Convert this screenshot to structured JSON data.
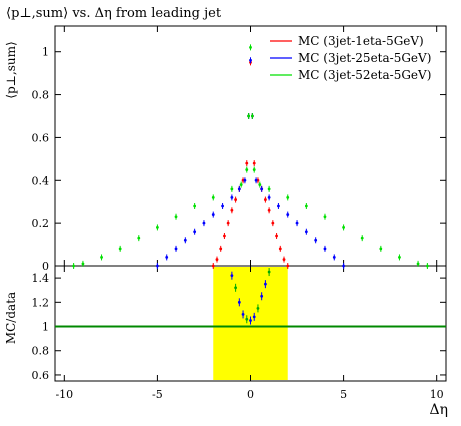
{
  "chart_data": {
    "type": "scatter",
    "title": "⟨p⊥,sum⟩ vs. Δη from leading jet",
    "xlabel": "Δη",
    "x_ticks": [
      "-10",
      "-5",
      "0",
      "5",
      "10"
    ],
    "xlim": [
      -10.5,
      10.5
    ],
    "legend_position": "top-right",
    "main_panel": {
      "ylabel": "⟨p⊥,sum⟩",
      "ylim": [
        0,
        1.12
      ],
      "y_ticks": [
        "0",
        "0.2",
        "0.4",
        "0.6",
        "0.8",
        "1"
      ],
      "series": [
        {
          "name": "MC (3jet-1eta-5GeV)",
          "color": "#ff0000",
          "points": [
            [
              -2.0,
              0.0
            ],
            [
              -1.8,
              0.03
            ],
            [
              -1.6,
              0.08
            ],
            [
              -1.4,
              0.14
            ],
            [
              -1.2,
              0.2
            ],
            [
              -1.0,
              0.26
            ],
            [
              -0.8,
              0.31
            ],
            [
              -0.6,
              0.36
            ],
            [
              -0.4,
              0.4
            ],
            [
              -0.2,
              0.48
            ],
            [
              -0.1,
              0.7
            ],
            [
              0.0,
              0.95
            ],
            [
              0.1,
              0.7
            ],
            [
              0.2,
              0.48
            ],
            [
              0.4,
              0.4
            ],
            [
              0.6,
              0.36
            ],
            [
              0.8,
              0.31
            ],
            [
              1.0,
              0.26
            ],
            [
              1.2,
              0.2
            ],
            [
              1.4,
              0.14
            ],
            [
              1.6,
              0.08
            ],
            [
              1.8,
              0.03
            ],
            [
              2.0,
              0.0
            ]
          ]
        },
        {
          "name": "MC (3jet-25eta-5GeV)",
          "color": "#0000ff",
          "points": [
            [
              -5.0,
              0.0
            ],
            [
              -4.5,
              0.04
            ],
            [
              -4.0,
              0.08
            ],
            [
              -3.5,
              0.12
            ],
            [
              -3.0,
              0.16
            ],
            [
              -2.5,
              0.2
            ],
            [
              -2.0,
              0.24
            ],
            [
              -1.5,
              0.28
            ],
            [
              -1.0,
              0.32
            ],
            [
              -0.6,
              0.36
            ],
            [
              -0.3,
              0.4
            ],
            [
              -0.1,
              0.7
            ],
            [
              0.0,
              0.96
            ],
            [
              0.1,
              0.7
            ],
            [
              0.3,
              0.4
            ],
            [
              0.6,
              0.36
            ],
            [
              1.0,
              0.32
            ],
            [
              1.5,
              0.28
            ],
            [
              2.0,
              0.24
            ],
            [
              2.5,
              0.2
            ],
            [
              3.0,
              0.16
            ],
            [
              3.5,
              0.12
            ],
            [
              4.0,
              0.08
            ],
            [
              4.5,
              0.04
            ],
            [
              5.0,
              0.0
            ]
          ]
        },
        {
          "name": "MC (3jet-52eta-5GeV)",
          "color": "#00e000",
          "points": [
            [
              -9.5,
              0.0
            ],
            [
              -9.0,
              0.01
            ],
            [
              -8.0,
              0.04
            ],
            [
              -7.0,
              0.08
            ],
            [
              -6.0,
              0.13
            ],
            [
              -5.0,
              0.18
            ],
            [
              -4.0,
              0.23
            ],
            [
              -3.0,
              0.28
            ],
            [
              -2.0,
              0.32
            ],
            [
              -1.0,
              0.36
            ],
            [
              -0.5,
              0.38
            ],
            [
              -0.2,
              0.45
            ],
            [
              -0.1,
              0.7
            ],
            [
              0.0,
              1.02
            ],
            [
              0.1,
              0.7
            ],
            [
              0.2,
              0.45
            ],
            [
              0.5,
              0.38
            ],
            [
              1.0,
              0.36
            ],
            [
              2.0,
              0.32
            ],
            [
              3.0,
              0.28
            ],
            [
              4.0,
              0.23
            ],
            [
              5.0,
              0.18
            ],
            [
              6.0,
              0.13
            ],
            [
              7.0,
              0.08
            ],
            [
              8.0,
              0.04
            ],
            [
              9.0,
              0.01
            ],
            [
              9.5,
              0.0
            ]
          ]
        }
      ]
    },
    "ratio_panel": {
      "ylabel": "MC/data",
      "ylim": [
        0.55,
        1.5
      ],
      "y_ticks": [
        "0.6",
        "0.8",
        "1",
        "1.2",
        "1.4"
      ],
      "reference_line": 1.0,
      "reference_color": "#008800",
      "band_color": "#ffff00",
      "band_range": [
        -2.0,
        2.0
      ],
      "points": [
        [
          -1.0,
          1.42
        ],
        [
          -0.8,
          1.32
        ],
        [
          -0.6,
          1.2
        ],
        [
          -0.4,
          1.1
        ],
        [
          -0.2,
          1.06
        ],
        [
          0.0,
          1.05
        ],
        [
          0.2,
          1.08
        ],
        [
          0.4,
          1.15
        ],
        [
          0.6,
          1.25
        ],
        [
          0.8,
          1.35
        ],
        [
          1.0,
          1.45
        ]
      ]
    }
  }
}
